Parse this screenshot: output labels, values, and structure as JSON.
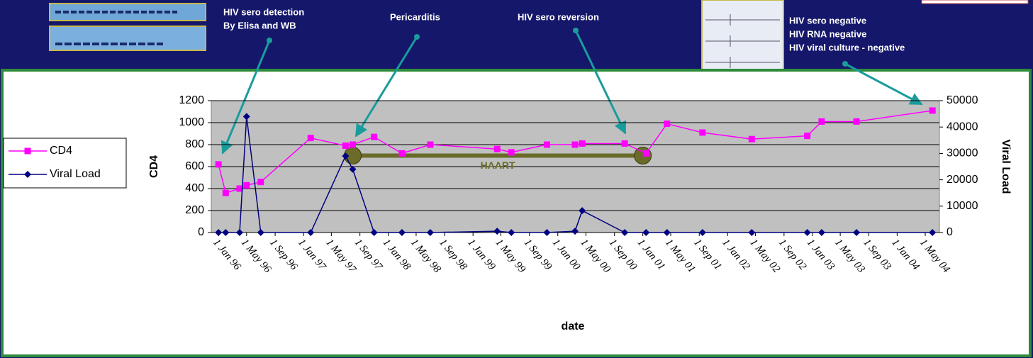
{
  "chart_data": {
    "type": "line",
    "x_label": "date",
    "y_label": "CD4",
    "y2_label": "Viral Load",
    "x": [
      "1996-01-01",
      "1996-02-01",
      "1996-04-01",
      "1996-05-01",
      "1996-07-01",
      "1997-02-01",
      "1997-07-01",
      "1997-08-01",
      "1997-11-01",
      "1998-03-01",
      "1998-07-01",
      "1999-04-15",
      "1999-06-15",
      "1999-11-15",
      "2000-03-15",
      "2000-04-15",
      "2000-10-15",
      "2001-01-15",
      "2001-04-15",
      "2001-09-15",
      "2002-04-15",
      "2002-12-10",
      "2003-02-10",
      "2003-07-10",
      "2004-06-01"
    ],
    "series": [
      {
        "name": "CD4",
        "color": "#ff00ff",
        "marker": "square",
        "values": [
          620,
          360,
          400,
          430,
          460,
          860,
          790,
          800,
          870,
          720,
          800,
          760,
          730,
          800,
          800,
          810,
          810,
          720,
          990,
          910,
          850,
          880,
          1010,
          1010,
          1110
        ]
      },
      {
        "name": "Viral Load",
        "color": "#000080",
        "marker": "diamond",
        "axis": "y2",
        "values": [
          0,
          0,
          0,
          44000,
          0,
          0,
          29000,
          24000,
          0,
          0,
          0,
          500,
          0,
          0,
          500,
          8300,
          0,
          0,
          0,
          0,
          0,
          0,
          0,
          0,
          0
        ]
      }
    ],
    "xlim": [
      "1995-12-01",
      "2004-07-01"
    ],
    "xticks": [
      {
        "value": "1996-01-01",
        "label": "1 Jan 96"
      },
      {
        "value": "1996-05-01",
        "label": "1 May 96"
      },
      {
        "value": "1996-09-01",
        "label": "1 Sep 96"
      },
      {
        "value": "1997-01-01",
        "label": "1 Jan 97"
      },
      {
        "value": "1997-05-01",
        "label": "1 May 97"
      },
      {
        "value": "1997-09-01",
        "label": "1 Sep 97"
      },
      {
        "value": "1998-01-01",
        "label": "1 Jan 98"
      },
      {
        "value": "1998-05-01",
        "label": "1 May 98"
      },
      {
        "value": "1998-09-01",
        "label": "1 Sep 98"
      },
      {
        "value": "1999-01-01",
        "label": "1 Jan 99"
      },
      {
        "value": "1999-05-01",
        "label": "1 May 99"
      },
      {
        "value": "1999-09-01",
        "label": "1 Sep 99"
      },
      {
        "value": "2000-01-01",
        "label": "1 Jan 00"
      },
      {
        "value": "2000-05-01",
        "label": "1 May 00"
      },
      {
        "value": "2000-09-01",
        "label": "1 Sep 00"
      },
      {
        "value": "2001-01-01",
        "label": "1 Jan 01"
      },
      {
        "value": "2001-05-01",
        "label": "1 May 01"
      },
      {
        "value": "2001-09-01",
        "label": "1 Sep 01"
      },
      {
        "value": "2002-01-01",
        "label": "1 Jan 02"
      },
      {
        "value": "2002-05-01",
        "label": "1 May 02"
      },
      {
        "value": "2002-09-01",
        "label": "1 Sep 02"
      },
      {
        "value": "2003-01-01",
        "label": "1 Jan 03"
      },
      {
        "value": "2003-05-01",
        "label": "1 May 03"
      },
      {
        "value": "2003-09-01",
        "label": "1 Sep 03"
      },
      {
        "value": "2004-01-01",
        "label": "1 Jan 04"
      },
      {
        "value": "2004-05-01",
        "label": "1 May 04"
      }
    ],
    "ylim": [
      0,
      1200
    ],
    "yticks": [
      0,
      200,
      400,
      600,
      800,
      1000,
      1200
    ],
    "y2lim": [
      0,
      50000
    ],
    "y2ticks": [
      0,
      10000,
      20000,
      30000,
      40000,
      50000
    ],
    "grid": true,
    "legend": "left",
    "span": {
      "label": "HAART",
      "x": [
        "1997-08-01",
        "2001-01-01"
      ],
      "y": 700,
      "color": "#6b6b2a"
    },
    "annotations": [
      {
        "lines": [
          "HIV sero detection",
          "By Elisa and WB"
        ]
      },
      {
        "lines": [
          "Pericarditis"
        ]
      },
      {
        "lines": [
          "HIV sero reversion"
        ]
      },
      {
        "lines": [
          "HIV sero negative",
          "HIV RNA negative",
          "HIV viral culture - negative"
        ]
      }
    ]
  }
}
